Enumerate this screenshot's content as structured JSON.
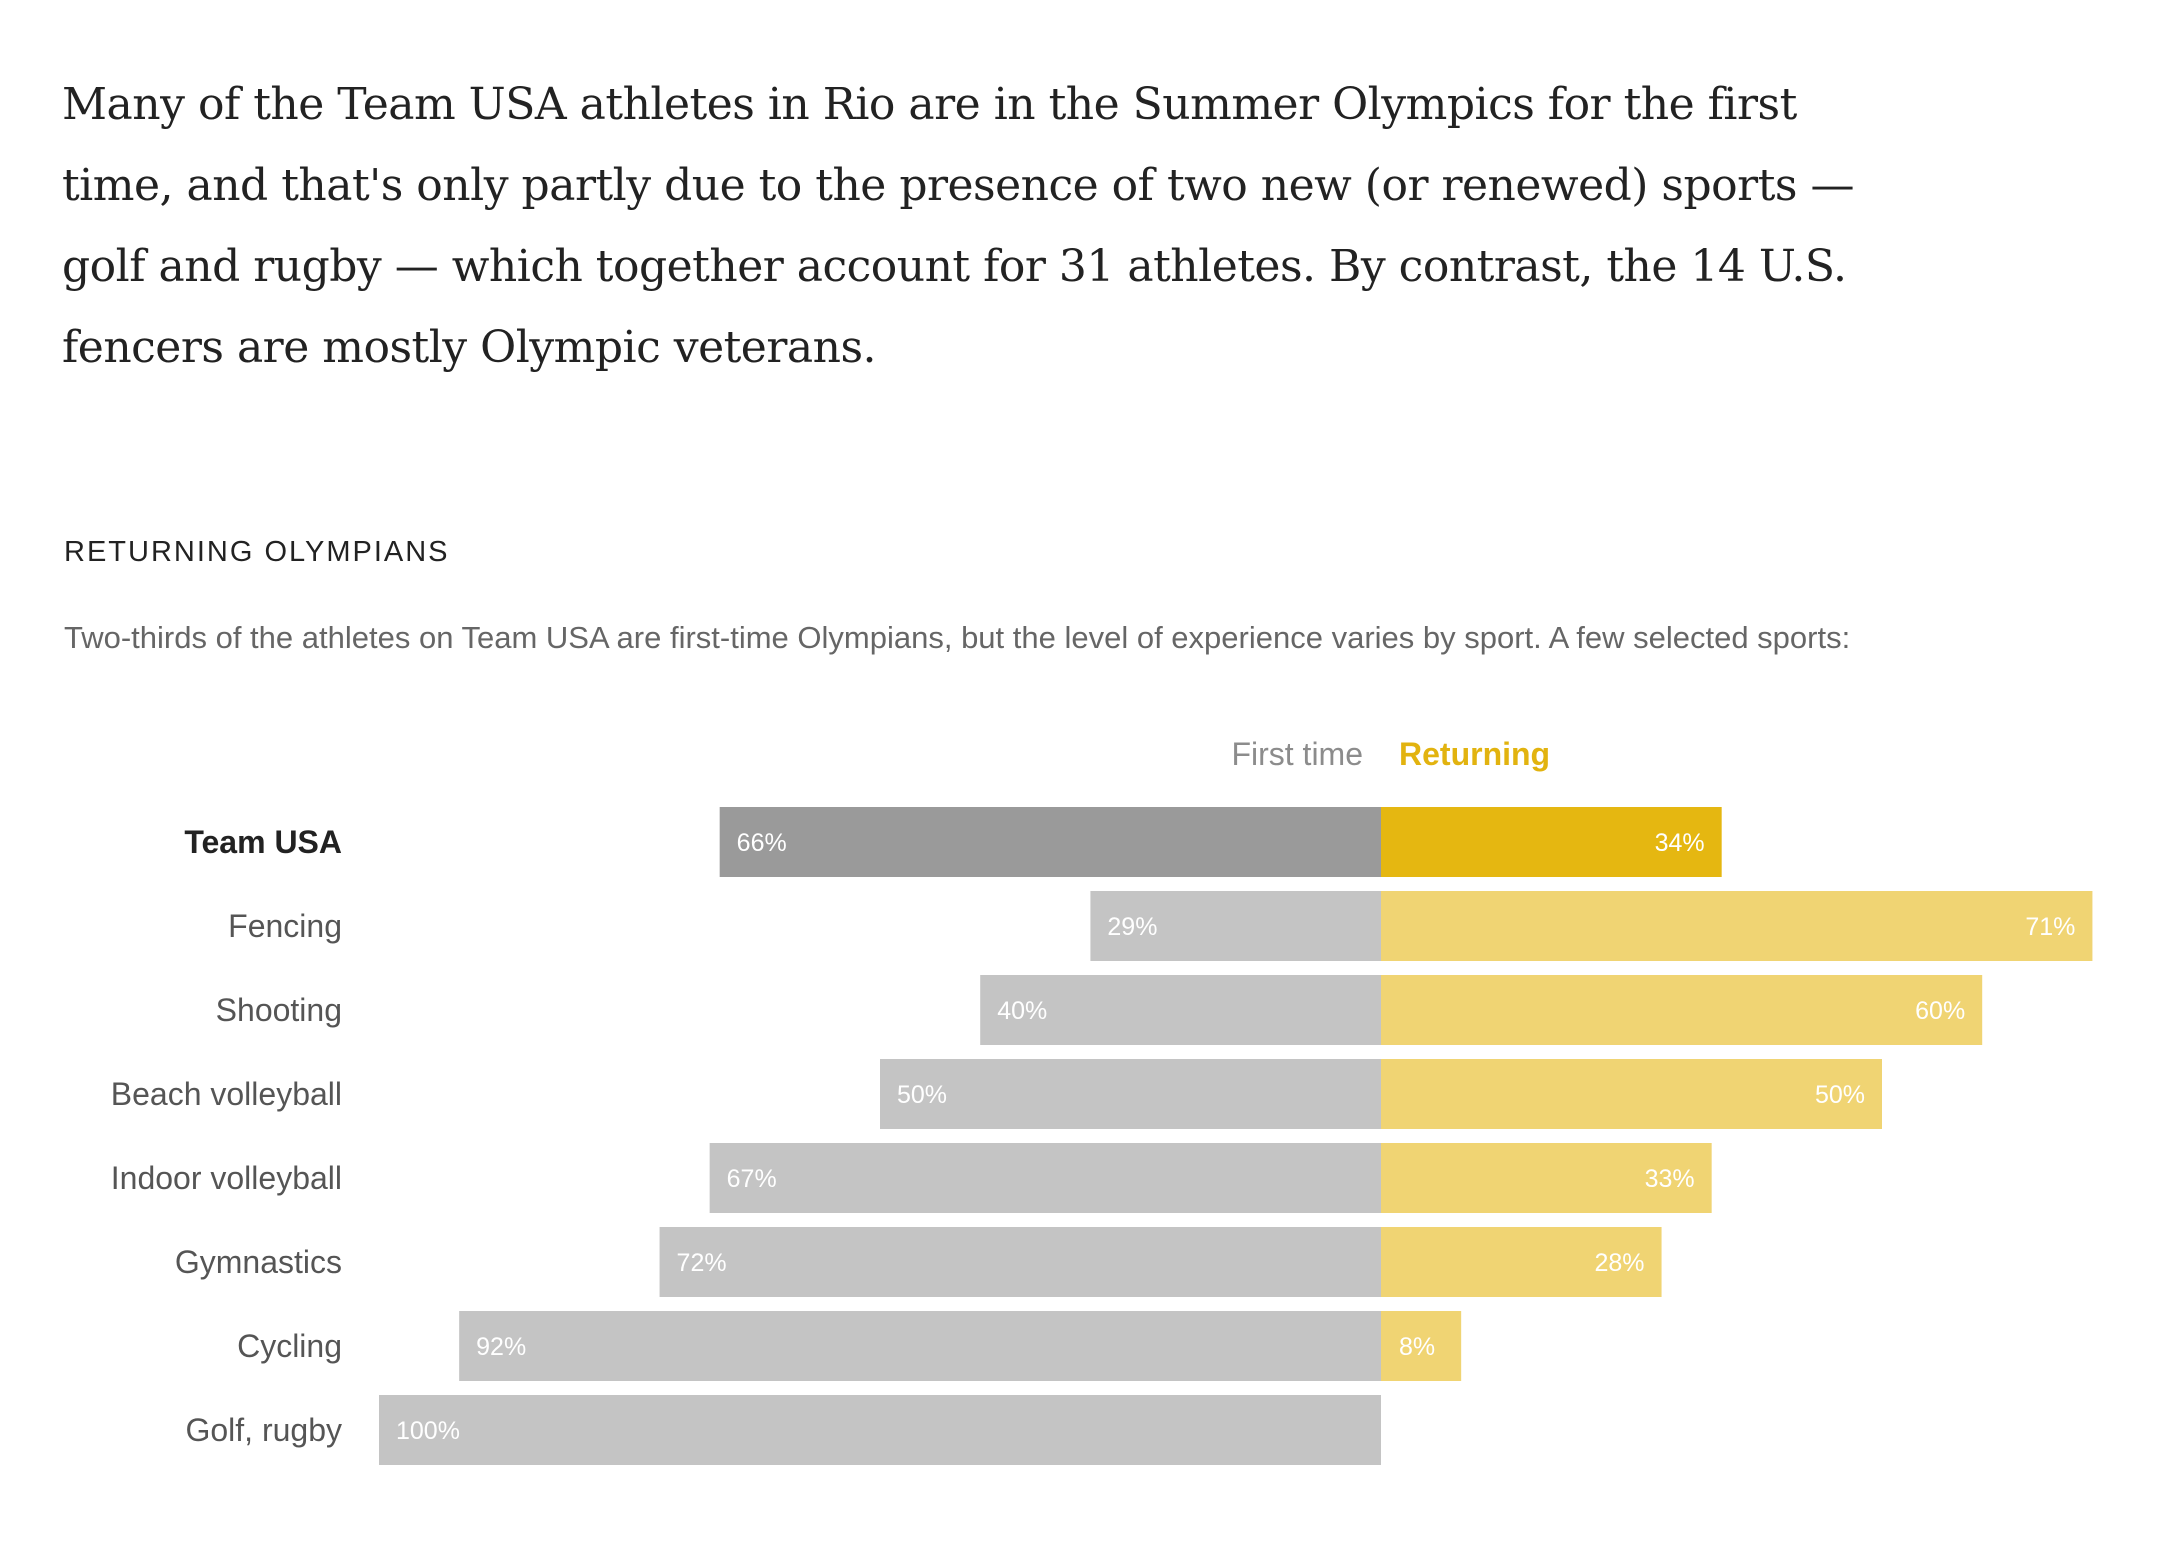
{
  "article": {
    "intro": "Many of the Team USA athletes in Rio are in the Summer Olympics for the first time, and that's only partly due to the presence of two new (or renewed) sports — golf and rugby — which together account for 31 athletes. By contrast, the 14 U.S. fencers are mostly Olympic veterans."
  },
  "chart": {
    "kicker": "RETURNING OLYMPIANS",
    "subtitle": "Two-thirds of the athletes on Team USA are first-time Olympians, but the level of experience varies by sport. A few selected sports:"
  },
  "chart_data": {
    "type": "bar",
    "orientation": "horizontal-diverging",
    "title": "RETURNING OLYMPIANS",
    "categories": [
      "Team USA",
      "Fencing",
      "Shooting",
      "Beach volleyball",
      "Indoor volleyball",
      "Gymnastics",
      "Cycling",
      "Golf, rugby"
    ],
    "highlight_category": "Team USA",
    "unit": "%",
    "series": [
      {
        "name": "First time",
        "values": [
          66,
          29,
          40,
          50,
          67,
          72,
          92,
          100
        ]
      },
      {
        "name": "Returning",
        "values": [
          34,
          71,
          60,
          50,
          33,
          28,
          8,
          0
        ]
      }
    ],
    "legend_placement": "top-center",
    "grid": false,
    "colors": {
      "first_time_highlight": "#9a9a9a",
      "first_time": "#c4c4c4",
      "returning_highlight": "#e5b711",
      "returning": "#f0d473",
      "legend_first_time": "#8c8c8c",
      "legend_returning": "#e2b30f",
      "category_label": "#555555",
      "category_label_highlight": "#222222",
      "bar_label": "#ffffff"
    }
  }
}
